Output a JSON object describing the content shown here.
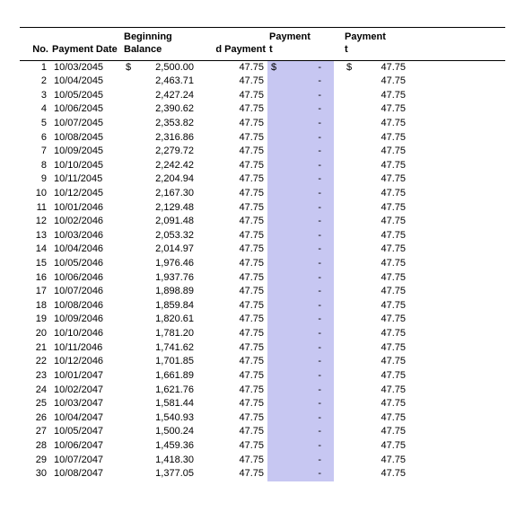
{
  "table": {
    "headers": {
      "no": "No.",
      "date": "Payment Date",
      "begin": "Beginning Balance",
      "d_payment": "d Payment",
      "payment_t1": "Payment",
      "payment_t2": "Payment"
    },
    "header_suffix": "t",
    "currency_symbol": "$",
    "highlight_color": "#c7c7f2",
    "rows": [
      {
        "no": "1",
        "date": "10/03/2045",
        "begin": "2,500.00",
        "pay": "47.75",
        "p1": "-",
        "p2": "47.75",
        "show_sym": true
      },
      {
        "no": "2",
        "date": "10/04/2045",
        "begin": "2,463.71",
        "pay": "47.75",
        "p1": "-",
        "p2": "47.75"
      },
      {
        "no": "3",
        "date": "10/05/2045",
        "begin": "2,427.24",
        "pay": "47.75",
        "p1": "-",
        "p2": "47.75"
      },
      {
        "no": "4",
        "date": "10/06/2045",
        "begin": "2,390.62",
        "pay": "47.75",
        "p1": "-",
        "p2": "47.75"
      },
      {
        "no": "5",
        "date": "10/07/2045",
        "begin": "2,353.82",
        "pay": "47.75",
        "p1": "-",
        "p2": "47.75"
      },
      {
        "no": "6",
        "date": "10/08/2045",
        "begin": "2,316.86",
        "pay": "47.75",
        "p1": "-",
        "p2": "47.75"
      },
      {
        "no": "7",
        "date": "10/09/2045",
        "begin": "2,279.72",
        "pay": "47.75",
        "p1": "-",
        "p2": "47.75"
      },
      {
        "no": "8",
        "date": "10/10/2045",
        "begin": "2,242.42",
        "pay": "47.75",
        "p1": "-",
        "p2": "47.75"
      },
      {
        "no": "9",
        "date": "10/11/2045",
        "begin": "2,204.94",
        "pay": "47.75",
        "p1": "-",
        "p2": "47.75"
      },
      {
        "no": "10",
        "date": "10/12/2045",
        "begin": "2,167.30",
        "pay": "47.75",
        "p1": "-",
        "p2": "47.75"
      },
      {
        "no": "11",
        "date": "10/01/2046",
        "begin": "2,129.48",
        "pay": "47.75",
        "p1": "-",
        "p2": "47.75"
      },
      {
        "no": "12",
        "date": "10/02/2046",
        "begin": "2,091.48",
        "pay": "47.75",
        "p1": "-",
        "p2": "47.75"
      },
      {
        "no": "13",
        "date": "10/03/2046",
        "begin": "2,053.32",
        "pay": "47.75",
        "p1": "-",
        "p2": "47.75"
      },
      {
        "no": "14",
        "date": "10/04/2046",
        "begin": "2,014.97",
        "pay": "47.75",
        "p1": "-",
        "p2": "47.75"
      },
      {
        "no": "15",
        "date": "10/05/2046",
        "begin": "1,976.46",
        "pay": "47.75",
        "p1": "-",
        "p2": "47.75"
      },
      {
        "no": "16",
        "date": "10/06/2046",
        "begin": "1,937.76",
        "pay": "47.75",
        "p1": "-",
        "p2": "47.75"
      },
      {
        "no": "17",
        "date": "10/07/2046",
        "begin": "1,898.89",
        "pay": "47.75",
        "p1": "-",
        "p2": "47.75"
      },
      {
        "no": "18",
        "date": "10/08/2046",
        "begin": "1,859.84",
        "pay": "47.75",
        "p1": "-",
        "p2": "47.75"
      },
      {
        "no": "19",
        "date": "10/09/2046",
        "begin": "1,820.61",
        "pay": "47.75",
        "p1": "-",
        "p2": "47.75"
      },
      {
        "no": "20",
        "date": "10/10/2046",
        "begin": "1,781.20",
        "pay": "47.75",
        "p1": "-",
        "p2": "47.75"
      },
      {
        "no": "21",
        "date": "10/11/2046",
        "begin": "1,741.62",
        "pay": "47.75",
        "p1": "-",
        "p2": "47.75"
      },
      {
        "no": "22",
        "date": "10/12/2046",
        "begin": "1,701.85",
        "pay": "47.75",
        "p1": "-",
        "p2": "47.75"
      },
      {
        "no": "23",
        "date": "10/01/2047",
        "begin": "1,661.89",
        "pay": "47.75",
        "p1": "-",
        "p2": "47.75"
      },
      {
        "no": "24",
        "date": "10/02/2047",
        "begin": "1,621.76",
        "pay": "47.75",
        "p1": "-",
        "p2": "47.75"
      },
      {
        "no": "25",
        "date": "10/03/2047",
        "begin": "1,581.44",
        "pay": "47.75",
        "p1": "-",
        "p2": "47.75"
      },
      {
        "no": "26",
        "date": "10/04/2047",
        "begin": "1,540.93",
        "pay": "47.75",
        "p1": "-",
        "p2": "47.75"
      },
      {
        "no": "27",
        "date": "10/05/2047",
        "begin": "1,500.24",
        "pay": "47.75",
        "p1": "-",
        "p2": "47.75"
      },
      {
        "no": "28",
        "date": "10/06/2047",
        "begin": "1,459.36",
        "pay": "47.75",
        "p1": "-",
        "p2": "47.75"
      },
      {
        "no": "29",
        "date": "10/07/2047",
        "begin": "1,418.30",
        "pay": "47.75",
        "p1": "-",
        "p2": "47.75"
      },
      {
        "no": "30",
        "date": "10/08/2047",
        "begin": "1,377.05",
        "pay": "47.75",
        "p1": "-",
        "p2": "47.75"
      }
    ]
  }
}
